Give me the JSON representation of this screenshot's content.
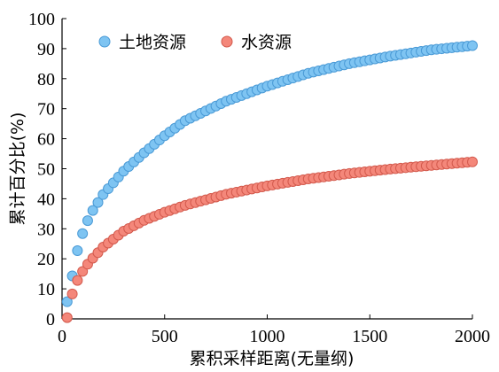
{
  "chart_data": {
    "type": "scatter",
    "title": "",
    "xlabel": "累积采样距离(无量纲)",
    "ylabel": "累计百分比(%)",
    "xlim": [
      0,
      2000
    ],
    "ylim": [
      0,
      100
    ],
    "x_ticks": [
      "0",
      "500",
      "1000",
      "1500",
      "2000"
    ],
    "y_ticks": [
      "0",
      "10",
      "20",
      "30",
      "40",
      "50",
      "60",
      "70",
      "80",
      "90",
      "100"
    ],
    "grid": false,
    "legend_placement": "top-left",
    "series": [
      {
        "name": "土地资源",
        "color": "#7ec4f2",
        "stroke": "#4a9ad6",
        "x": [
          25,
          50,
          75,
          100,
          125,
          150,
          200,
          300,
          400,
          500,
          600,
          800,
          1000,
          1200,
          1400,
          1600,
          1800,
          2000
        ],
        "y": [
          5.7,
          14.3,
          22.7,
          28.4,
          32.7,
          36.1,
          41.4,
          49.2,
          55.3,
          61.0,
          66.0,
          72.5,
          77.5,
          81.8,
          85.0,
          87.5,
          89.6,
          91.0
        ]
      },
      {
        "name": "水资源",
        "color": "#f4877a",
        "stroke": "#d35a4d",
        "x": [
          25,
          50,
          75,
          100,
          125,
          150,
          200,
          300,
          400,
          500,
          600,
          800,
          1000,
          1200,
          1400,
          1600,
          1800,
          2000
        ],
        "y": [
          0.4,
          8.3,
          12.8,
          15.8,
          18.2,
          20.2,
          23.9,
          29.2,
          32.8,
          35.5,
          37.8,
          41.5,
          44.3,
          46.6,
          48.4,
          49.9,
          51.1,
          52.3
        ]
      }
    ]
  }
}
